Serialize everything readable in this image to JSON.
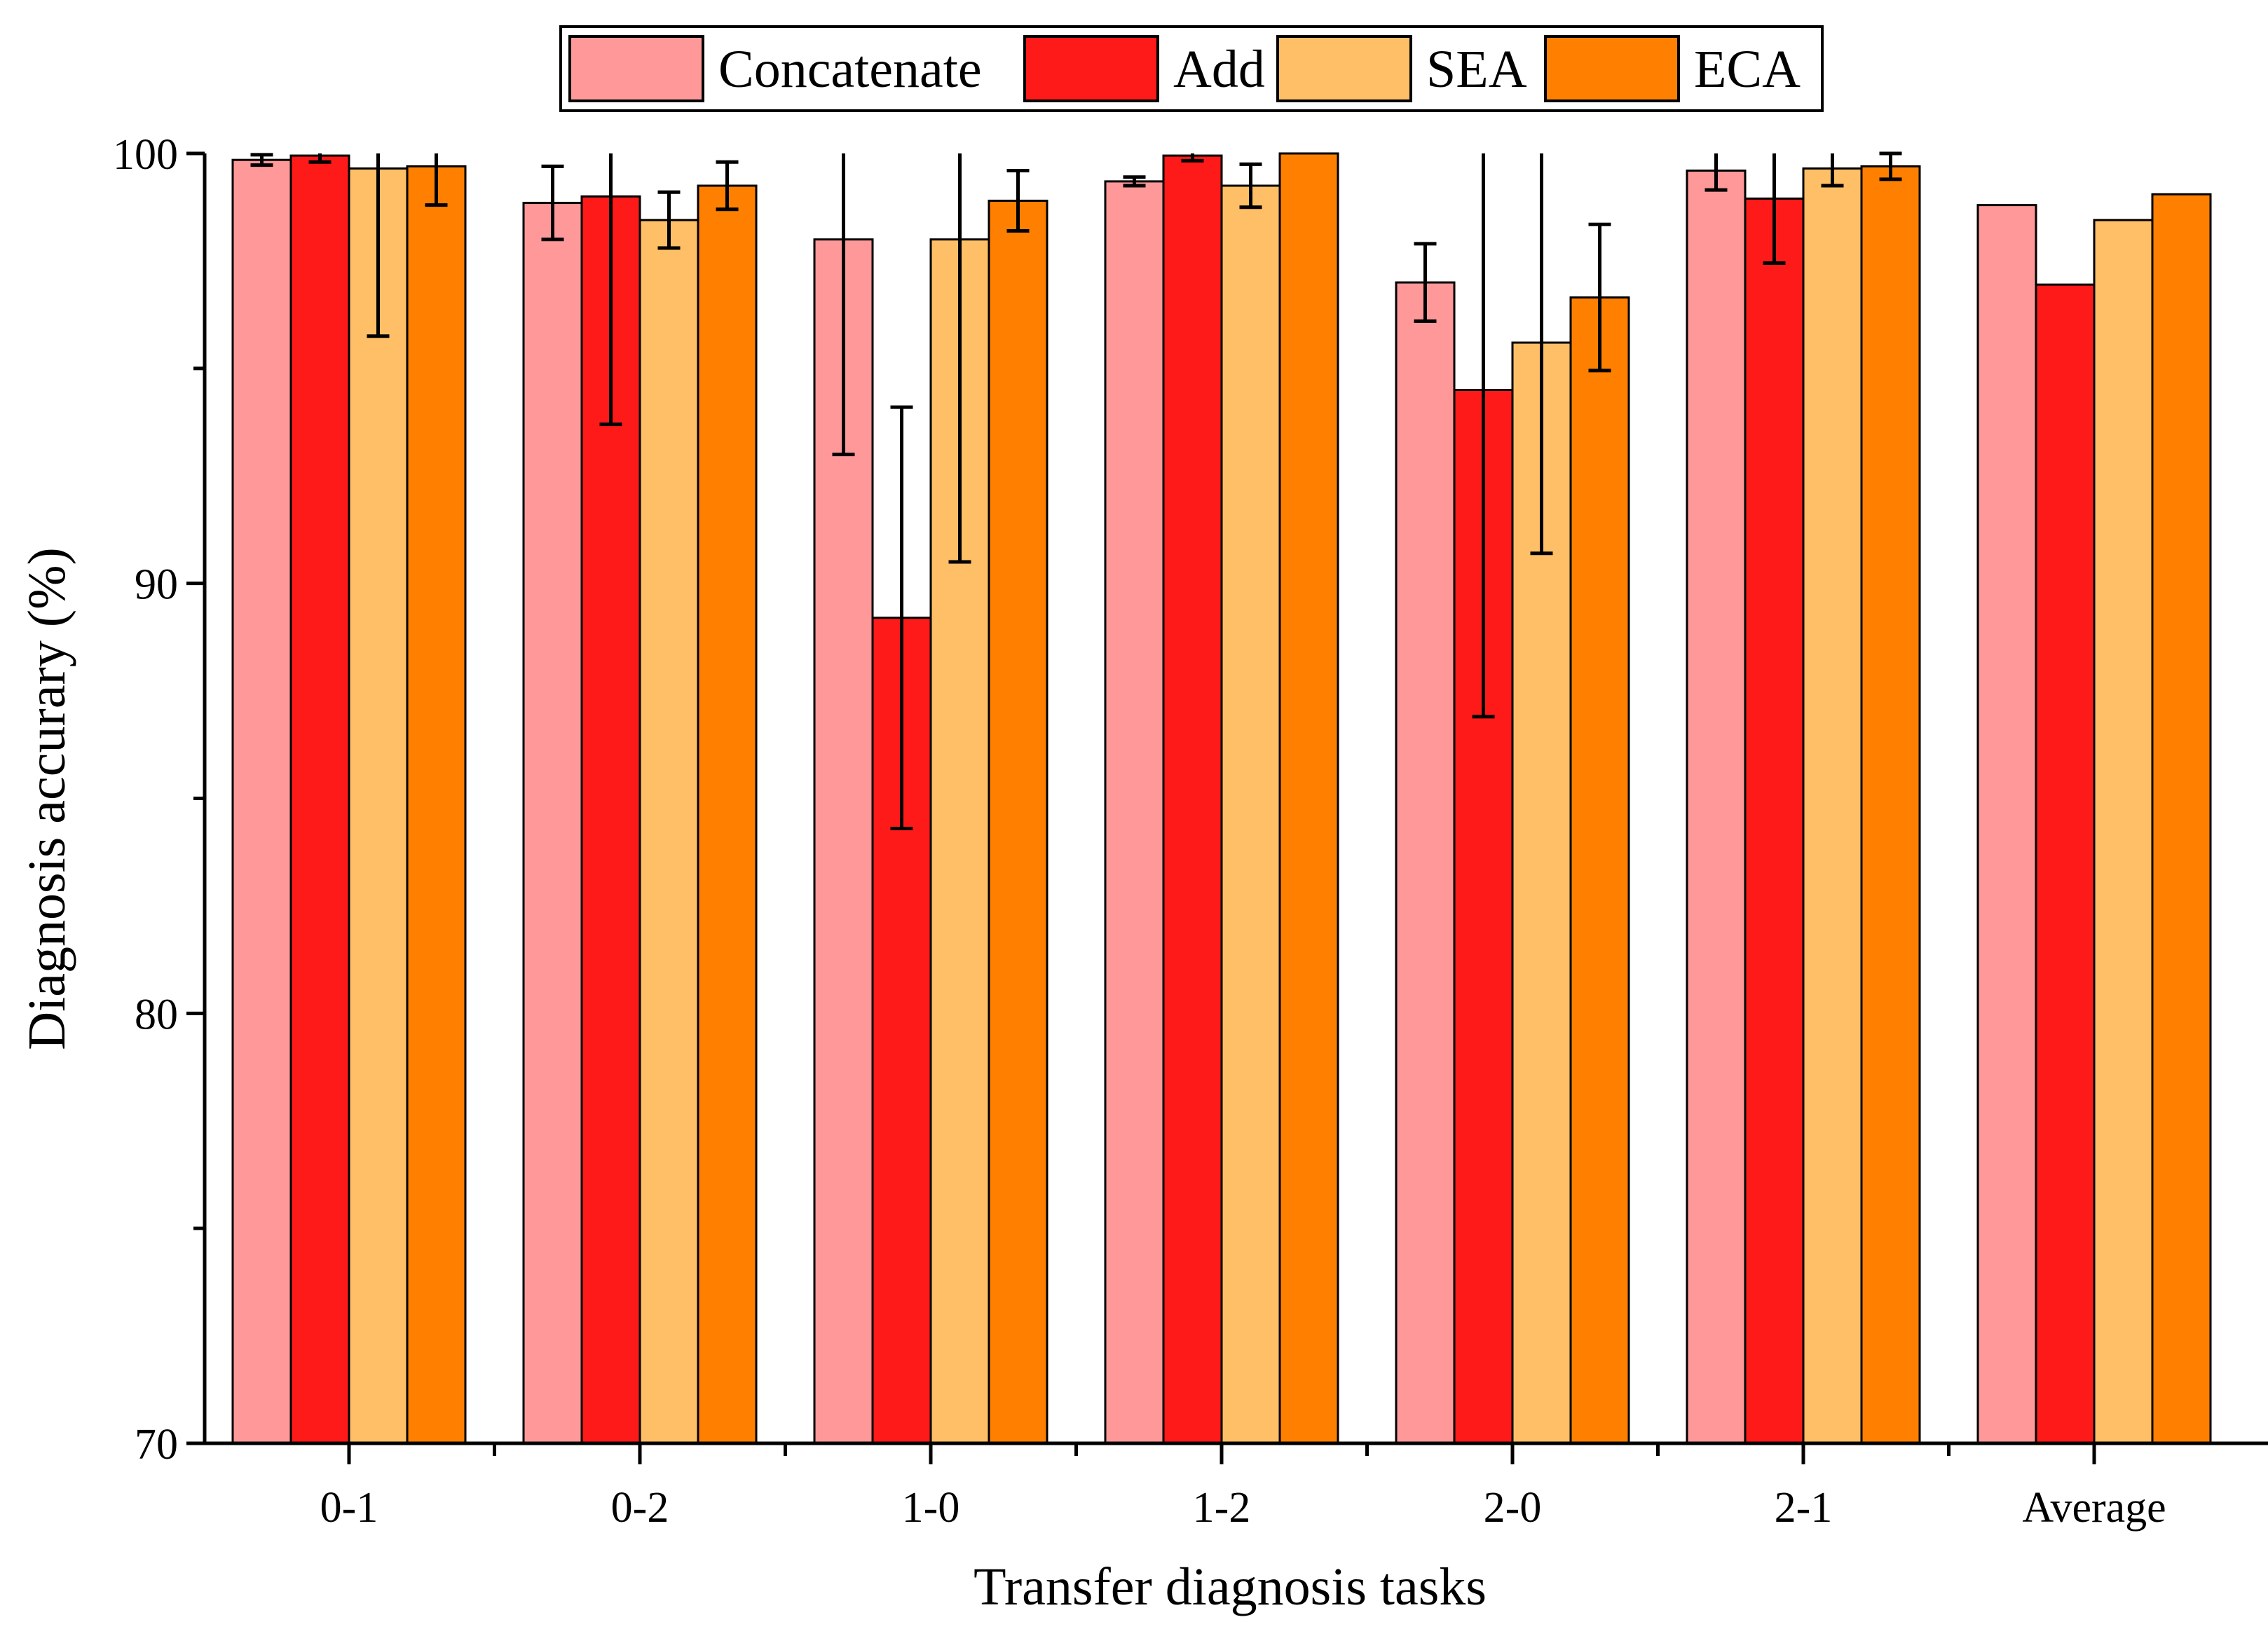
{
  "chart_data": {
    "type": "bar",
    "xlabel": "Transfer diagnosis tasks",
    "ylabel": "Diagnosis accurary (%)",
    "ylim": [
      70,
      100
    ],
    "yticks": [
      70,
      80,
      90,
      100
    ],
    "grid": false,
    "legend_position": "top",
    "categories": [
      "0-1",
      "0-2",
      "1-0",
      "1-2",
      "2-0",
      "2-1",
      "Average"
    ],
    "series": [
      {
        "name": "Concatenate",
        "color": "#FF9999",
        "values": [
          99.85,
          98.85,
          98.0,
          99.35,
          97.0,
          99.6,
          98.8
        ],
        "errors": [
          0.12,
          0.85,
          5.0,
          0.1,
          0.9,
          0.45,
          null
        ]
      },
      {
        "name": "Add",
        "color": "#FF1A1A",
        "values": [
          99.95,
          99.0,
          89.2,
          99.95,
          94.5,
          98.95,
          96.95
        ],
        "errors": [
          0.15,
          5.3,
          4.9,
          0.12,
          7.6,
          1.5,
          null
        ]
      },
      {
        "name": "SEA",
        "color": "#FFBF66",
        "values": [
          99.65,
          98.45,
          98.0,
          99.25,
          95.6,
          99.65,
          98.45
        ],
        "errors": [
          3.9,
          0.65,
          7.5,
          0.5,
          4.9,
          0.4,
          null
        ]
      },
      {
        "name": "ECA",
        "color": "#FF8000",
        "values": [
          99.7,
          99.25,
          98.9,
          100.0,
          96.65,
          99.7,
          99.05
        ],
        "errors": [
          0.9,
          0.55,
          0.7,
          null,
          1.7,
          0.3,
          null
        ]
      }
    ]
  }
}
